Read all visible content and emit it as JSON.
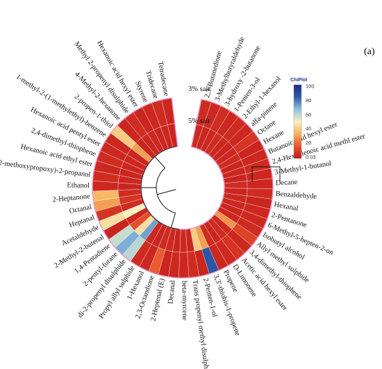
{
  "panel_label": "(a)",
  "chart_data": {
    "type": "heatmap",
    "layout": "circular",
    "title": "",
    "rings": [
      "3% salt",
      "5% salt"
    ],
    "colorbar": {
      "title": "ChiPlot",
      "range": [
        0.03,
        100
      ],
      "ticks": [
        "100",
        "80",
        "60",
        "40",
        "20",
        "0.03"
      ],
      "colors": [
        "#c0161b",
        "#e8542c",
        "#f7b25c",
        "#fbf0c0",
        "#8fc4e0",
        "#2e5aa8",
        "#1b2a8a"
      ]
    },
    "compounds": [
      {
        "name": "Tetradecane",
        "values": [
          4,
          4
        ]
      },
      {
        "name": "Tridecane",
        "values": [
          6,
          5
        ]
      },
      {
        "name": "Styrene",
        "values": [
          5,
          4
        ]
      },
      {
        "name": "Hexanoic acid hexyl ester",
        "values": [
          4,
          5
        ]
      },
      {
        "name": "Methyl 2-propenyl disulphide",
        "values": [
          6,
          5
        ]
      },
      {
        "name": "4-Methyl-2-hexanone",
        "values": [
          4,
          4
        ]
      },
      {
        "name": "2-propen-1-thiol",
        "values": [
          40,
          30
        ]
      },
      {
        "name": "1-methyl-2-(1-methylethyl)-benzene",
        "values": [
          5,
          4
        ]
      },
      {
        "name": "Hexanoic acid pentyl ester",
        "values": [
          5,
          5
        ]
      },
      {
        "name": "2,4-dimethyl-thiophene",
        "values": [
          6,
          5
        ]
      },
      {
        "name": "Hexanoic acid ethyl ester",
        "values": [
          5,
          4
        ]
      },
      {
        "name": "1-(2-methoxypropoxy)-2-propanol",
        "values": [
          6,
          5
        ]
      },
      {
        "name": "Ethanol",
        "values": [
          5,
          4
        ]
      },
      {
        "name": "2-Heptanone",
        "values": [
          35,
          6
        ]
      },
      {
        "name": "Octanal",
        "values": [
          30,
          8
        ]
      },
      {
        "name": "Heptanal",
        "values": [
          8,
          6
        ]
      },
      {
        "name": "Acetaldehyde",
        "values": [
          45,
          50
        ]
      },
      {
        "name": "2-Methyl-2-butenal",
        "values": [
          4,
          5
        ]
      },
      {
        "name": "1,4-Pentadiene",
        "values": [
          58,
          15
        ]
      },
      {
        "name": "2-pentyl-furane",
        "values": [
          70,
          45
        ]
      },
      {
        "name": "di-2-propenyl disulphide",
        "values": [
          60,
          72
        ]
      },
      {
        "name": "Propyl allyl sulphide",
        "values": [
          6,
          5
        ]
      },
      {
        "name": "1-Hexanol",
        "values": [
          5,
          4
        ]
      },
      {
        "name": "2,3-Octandione",
        "values": [
          18,
          6
        ]
      },
      {
        "name": "2-Heptenal (E)",
        "values": [
          4,
          5
        ]
      },
      {
        "name": "Decanal",
        "values": [
          5,
          4
        ]
      },
      {
        "name": "beta-myrcene",
        "values": [
          5,
          5
        ]
      },
      {
        "name": "Trans propenyl methyl disulphide",
        "values": [
          6,
          4
        ]
      },
      {
        "name": "2-Penten-1-ol",
        "values": [
          4,
          40
        ]
      },
      {
        "name": "3,3'-thiobis-1-propene",
        "values": [
          85,
          30
        ]
      },
      {
        "name": "Propene",
        "values": [
          5,
          6
        ]
      },
      {
        "name": "D-Limonene",
        "values": [
          5,
          4
        ]
      },
      {
        "name": "Acetic acid hexyl ester",
        "values": [
          8,
          6
        ]
      },
      {
        "name": "3,4-dimethyl-thiophene",
        "values": [
          5,
          5
        ]
      },
      {
        "name": "Allyl methyl sulphide",
        "values": [
          12,
          28
        ]
      },
      {
        "name": "Isobutyl alcohol",
        "values": [
          6,
          5
        ]
      },
      {
        "name": "6-Methyl-5-hepten-2-on",
        "values": [
          5,
          4
        ]
      },
      {
        "name": "2-Pentanone",
        "values": [
          5,
          5
        ]
      },
      {
        "name": "Hexanal",
        "values": [
          4,
          5
        ]
      },
      {
        "name": "Benzaldehyde",
        "values": [
          6,
          4
        ]
      },
      {
        "name": "Decane",
        "values": [
          5,
          6
        ]
      },
      {
        "name": "3-Methyl-1-butanol",
        "values": [
          5,
          4
        ]
      },
      {
        "name": "2,4-Hexadienoic acid methl ester",
        "values": [
          6,
          5
        ]
      },
      {
        "name": "Butanoic acid hexyl ester",
        "values": [
          5,
          4
        ]
      },
      {
        "name": "Hexane",
        "values": [
          4,
          6
        ]
      },
      {
        "name": "Octane",
        "values": [
          8,
          5
        ]
      },
      {
        "name": "alfa-pinene",
        "values": [
          5,
          4
        ]
      },
      {
        "name": "2-Ethyl-1-hexanol",
        "values": [
          6,
          5
        ]
      },
      {
        "name": "1-Penten-3-ol",
        "values": [
          5,
          6
        ]
      },
      {
        "name": "3-hydroxy -2-butanone",
        "values": [
          6,
          5
        ]
      },
      {
        "name": "3-Methylbutyraldehyde",
        "values": [
          5,
          4
        ]
      },
      {
        "name": "2,3-Butanedione",
        "values": [
          6,
          5
        ]
      }
    ]
  }
}
